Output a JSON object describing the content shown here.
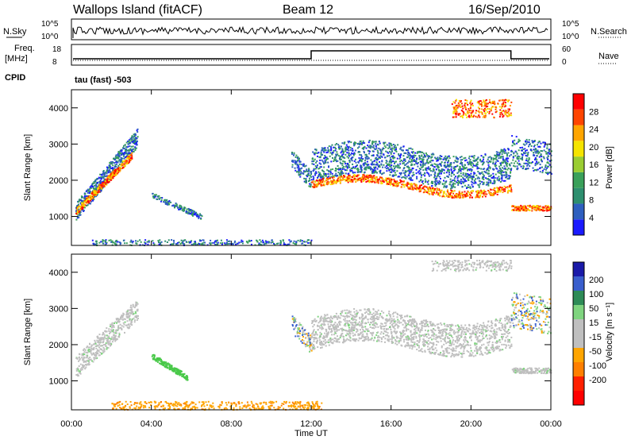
{
  "header": {
    "station": "Wallops Island (fitACF)",
    "beam": "Beam 12",
    "date": "16/Sep/2010"
  },
  "summary_panels": {
    "nsky_label": "N.Sky",
    "nsearch_label": "N.Search",
    "freq_label_1": "Freq.",
    "freq_label_2": "[MHz]",
    "nave_label": "Nave",
    "cpid_label": "CPID",
    "cpid_text": "tau (fast) -503",
    "noise_ticks": [
      "10^5",
      "10^0"
    ],
    "freq_ticks": [
      "18",
      "8"
    ],
    "nave_ticks": [
      "60",
      "0"
    ]
  },
  "colors": {
    "power_scale": [
      "#1a1aff",
      "#2e5fbf",
      "#2e8f6f",
      "#3aa05a",
      "#9acd32",
      "#f5e400",
      "#ffa500",
      "#ff4500",
      "#ff0000"
    ],
    "velocity_scale": [
      "#1a1aa8",
      "#3a5fcd",
      "#2e8b57",
      "#7fd47f",
      "#bfbfbf",
      "#bfbfbf",
      "#ffa500",
      "#ff7f00",
      "#ff2000",
      "#ff0000"
    ]
  },
  "chart_data": [
    {
      "type": "heatmap",
      "title": "Power",
      "ylabel": "Slant Range [km]",
      "xlabel": "Time UT",
      "x_ticks": [
        "00:00",
        "04:00",
        "08:00",
        "12:00",
        "16:00",
        "20:00",
        "00:00"
      ],
      "y_ticks": [
        "1000",
        "2000",
        "3000",
        "4000"
      ],
      "ylim": [
        200,
        4500
      ],
      "colorbar_label": "Power [dB]",
      "colorbar_ticks": [
        "4",
        "8",
        "12",
        "16",
        "20",
        "24",
        "28"
      ]
    },
    {
      "type": "heatmap",
      "title": "Velocity",
      "ylabel": "Slant Range [km]",
      "xlabel": "Time UT",
      "x_ticks": [
        "00:00",
        "04:00",
        "08:00",
        "12:00",
        "16:00",
        "20:00",
        "00:00"
      ],
      "y_ticks": [
        "1000",
        "2000",
        "3000",
        "4000"
      ],
      "ylim": [
        200,
        4500
      ],
      "colorbar_label": "Velocity [m s⁻¹]",
      "colorbar_ticks": [
        "200",
        "100",
        "50",
        "15",
        "-15",
        "-50",
        "-100",
        "-200"
      ]
    }
  ]
}
